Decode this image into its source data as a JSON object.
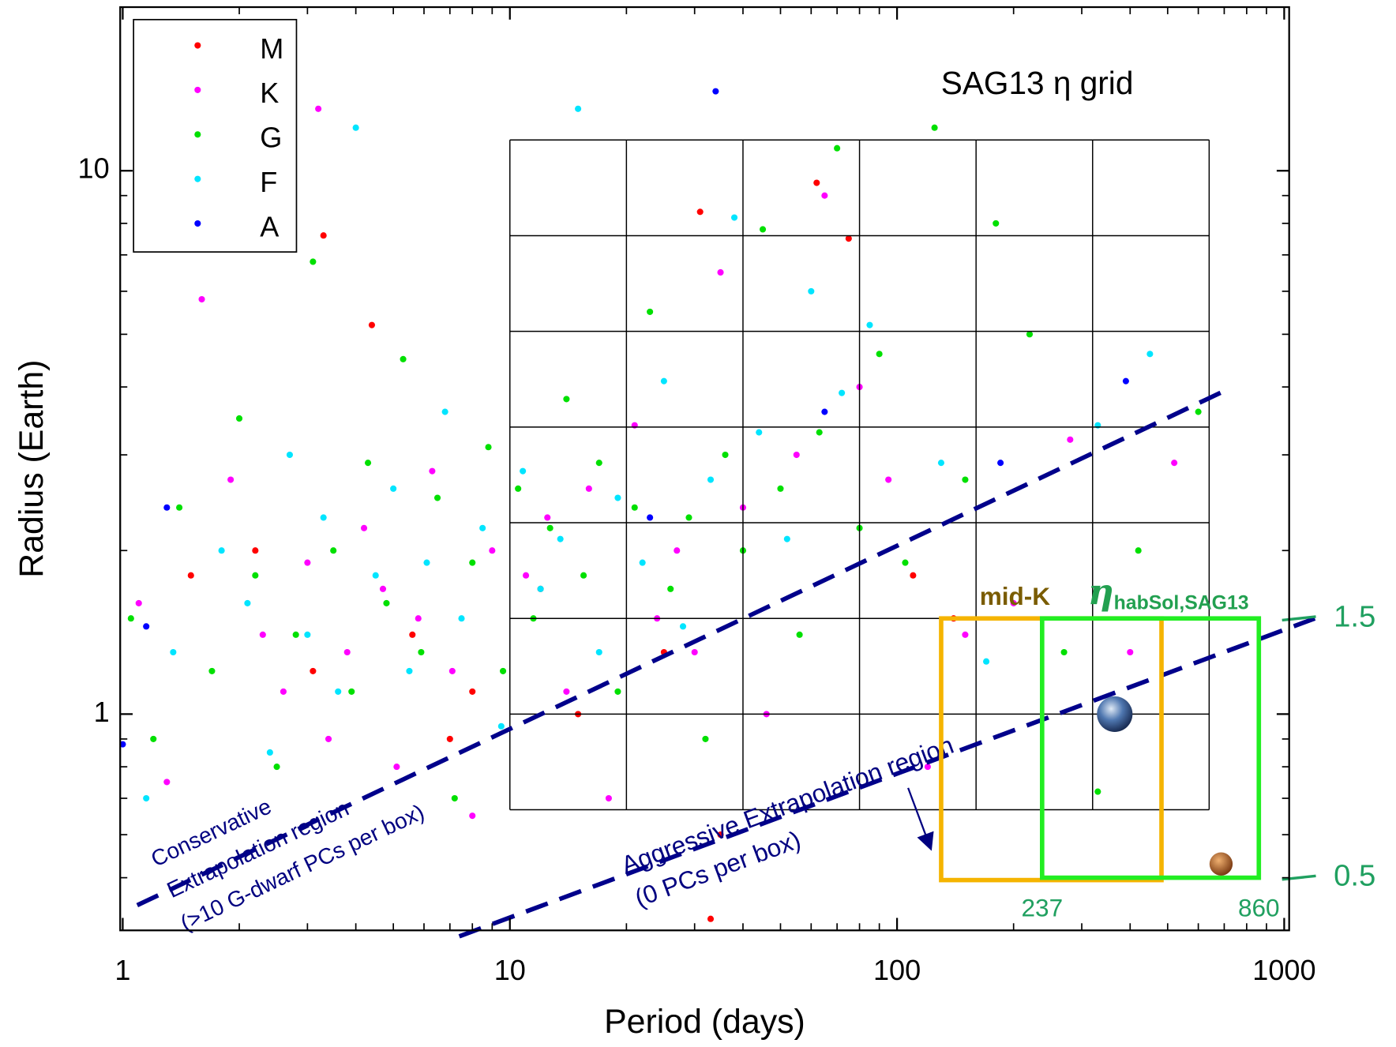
{
  "chart_data": {
    "type": "scatter",
    "xlabel": "Period (days)",
    "ylabel": "Radius (Earth)",
    "log_x": true,
    "log_y": true,
    "xlim": [
      0.985,
      1030
    ],
    "ylim": [
      0.4,
      20
    ],
    "xticks": [
      1,
      10,
      100,
      1000
    ],
    "yticks": [
      1,
      10
    ],
    "xminor": [
      2,
      3,
      4,
      5,
      6,
      7,
      8,
      9,
      20,
      30,
      40,
      50,
      60,
      70,
      80,
      90,
      200,
      300,
      400,
      500,
      600,
      700,
      800,
      900
    ],
    "yminor": [
      0.5,
      0.6,
      0.7,
      0.8,
      0.9,
      2,
      3,
      4,
      5,
      6,
      7,
      8,
      9
    ],
    "legend": "upper left",
    "series": [
      {
        "name": "M",
        "color": "#ff0000",
        "x": [
          1.5,
          2.2,
          3.1,
          4.4,
          5.6,
          7,
          12,
          15,
          25,
          31,
          33,
          62,
          75,
          110,
          140,
          35,
          8,
          3.3
        ],
        "values": [
          1.8,
          2.0,
          1.2,
          5.2,
          1.4,
          0.9,
          1.7,
          1.0,
          1.3,
          8.4,
          0.42,
          9.5,
          7.5,
          1.8,
          1.5,
          0.6,
          1.1,
          7.6
        ]
      },
      {
        "name": "K",
        "color": "#ff00ff",
        "x": [
          1.1,
          1.3,
          1.6,
          1.9,
          2.3,
          2.6,
          3.0,
          3.4,
          3.8,
          4.2,
          4.7,
          5.1,
          5.8,
          6.3,
          7.1,
          8.0,
          9.0,
          11,
          12.5,
          14,
          16,
          18,
          21,
          24,
          27,
          30,
          35,
          40,
          46,
          55,
          65,
          80,
          95,
          120,
          150,
          200,
          280,
          400,
          520,
          3.2
        ],
        "values": [
          1.6,
          0.75,
          5.8,
          2.7,
          1.4,
          1.1,
          1.9,
          0.9,
          1.3,
          2.2,
          1.7,
          0.8,
          1.5,
          2.8,
          1.2,
          0.65,
          2.0,
          1.8,
          2.3,
          1.1,
          2.6,
          0.7,
          3.4,
          1.5,
          2.0,
          1.3,
          6.5,
          2.4,
          1.0,
          3.0,
          9.0,
          4.0,
          2.7,
          0.8,
          1.4,
          1.6,
          3.2,
          1.3,
          2.9,
          13
        ]
      },
      {
        "name": "G",
        "color": "#00e000",
        "x": [
          1.05,
          1.2,
          1.4,
          1.7,
          2.0,
          2.2,
          2.5,
          2.8,
          3.1,
          3.5,
          3.9,
          4.3,
          4.8,
          5.3,
          5.9,
          6.5,
          7.2,
          8.0,
          8.8,
          9.6,
          10.5,
          11.5,
          12.7,
          14,
          15.5,
          17,
          19,
          21,
          23,
          26,
          29,
          32,
          36,
          40,
          45,
          50,
          56,
          63,
          70,
          80,
          90,
          105,
          125,
          150,
          180,
          220,
          270,
          330,
          420,
          600
        ],
        "values": [
          1.5,
          0.9,
          2.4,
          1.2,
          3.5,
          1.8,
          0.8,
          1.4,
          6.8,
          2.0,
          1.1,
          2.9,
          1.6,
          4.5,
          1.3,
          2.5,
          0.7,
          1.9,
          3.1,
          1.2,
          2.6,
          1.5,
          2.2,
          3.8,
          1.8,
          2.9,
          1.1,
          2.4,
          5.5,
          1.7,
          2.3,
          0.9,
          3.0,
          2.0,
          7.8,
          2.6,
          1.4,
          3.3,
          11,
          2.2,
          4.6,
          1.9,
          12,
          2.7,
          8.0,
          5.0,
          1.3,
          0.72,
          2.0,
          3.6
        ]
      },
      {
        "name": "F",
        "color": "#00e5ff",
        "x": [
          1.15,
          1.35,
          1.8,
          2.1,
          2.4,
          2.7,
          3.0,
          3.3,
          3.6,
          4.0,
          4.5,
          5.0,
          5.5,
          6.1,
          6.8,
          7.5,
          8.5,
          9.5,
          10.8,
          12,
          13.5,
          15,
          17,
          19,
          22,
          25,
          28,
          33,
          38,
          44,
          52,
          60,
          72,
          85,
          130,
          170,
          330,
          450
        ],
        "values": [
          0.7,
          1.3,
          2.0,
          1.6,
          0.85,
          3.0,
          1.4,
          2.3,
          1.1,
          12,
          1.8,
          2.6,
          1.2,
          1.9,
          3.6,
          1.5,
          2.2,
          0.95,
          2.8,
          1.7,
          2.1,
          13,
          1.3,
          2.5,
          1.9,
          4.1,
          1.45,
          2.7,
          8.2,
          3.3,
          2.1,
          6.0,
          3.9,
          5.2,
          2.9,
          1.25,
          3.4,
          4.6
        ]
      },
      {
        "name": "A",
        "color": "#0000ff",
        "x": [
          1.0,
          1.15,
          1.3,
          23,
          34,
          65,
          185,
          390
        ],
        "values": [
          0.88,
          1.45,
          2.4,
          2.3,
          14,
          3.6,
          2.9,
          4.1
        ]
      }
    ],
    "grid_title": "SAG13 η grid",
    "grid_x": [
      10,
      20,
      40,
      80,
      160,
      320,
      640
    ],
    "grid_y": [
      0.667,
      1,
      1.5,
      2.25,
      3.375,
      5.0625,
      7.594,
      11.39
    ],
    "conservative": {
      "x": [
        1.09,
        715
      ],
      "y": [
        0.445,
        3.96
      ],
      "lines": [
        "Conservative",
        "Extrapolation region",
        "(>10 G-dwarf PCs per box)"
      ]
    },
    "aggressive": {
      "x": [
        7.4,
        1200
      ],
      "y": [
        0.39,
        1.5
      ],
      "lines": [
        "Aggressive Extrapolation region",
        "(0 PCs per box)"
      ]
    },
    "midk_box": {
      "label": "mid-K",
      "x": [
        130,
        482
      ],
      "y": [
        0.495,
        1.5
      ]
    },
    "eta_box": {
      "symbol": "η",
      "subscript": "habSol,SAG13",
      "x": [
        237,
        860
      ],
      "y": [
        0.5,
        1.5
      ]
    },
    "earth": {
      "x": 365,
      "y": 1
    },
    "mars": {
      "x": 687,
      "y": 0.53
    }
  }
}
